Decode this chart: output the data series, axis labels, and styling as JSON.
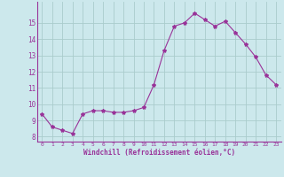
{
  "hours": [
    0,
    1,
    2,
    3,
    4,
    5,
    6,
    7,
    8,
    9,
    10,
    11,
    12,
    13,
    14,
    15,
    16,
    17,
    18,
    19,
    20,
    21,
    22,
    23
  ],
  "values": [
    9.4,
    8.6,
    8.4,
    8.2,
    9.4,
    9.6,
    9.6,
    9.5,
    9.5,
    9.6,
    9.8,
    11.2,
    13.3,
    14.8,
    15.0,
    15.6,
    15.2,
    14.8,
    15.1,
    14.4,
    13.7,
    12.9,
    11.8,
    11.2
  ],
  "line_color": "#993399",
  "marker": "*",
  "marker_size": 3,
  "bg_color": "#cce8ec",
  "grid_color": "#aacccc",
  "xlabel": "Windchill (Refroidissement éolien,°C)",
  "xlabel_color": "#993399",
  "tick_color": "#993399",
  "xlim": [
    -0.5,
    23.5
  ],
  "ylim": [
    7.7,
    16.3
  ],
  "yticks": [
    8,
    9,
    10,
    11,
    12,
    13,
    14,
    15
  ],
  "xticks": [
    0,
    1,
    2,
    3,
    4,
    5,
    6,
    7,
    8,
    9,
    10,
    11,
    12,
    13,
    14,
    15,
    16,
    17,
    18,
    19,
    20,
    21,
    22,
    23
  ]
}
